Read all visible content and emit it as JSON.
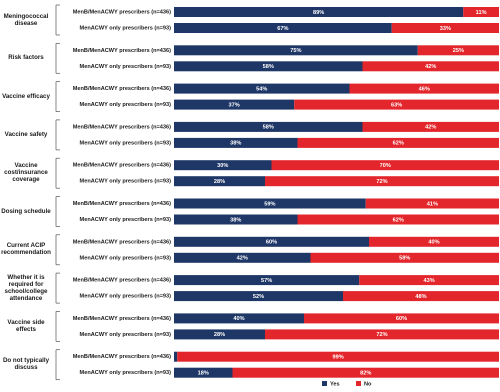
{
  "chart_data": {
    "type": "stacked-bar-horizontal",
    "groups": [
      "Meningococcal disease",
      "Risk factors",
      "Vaccine efficacy",
      "Vaccine safety",
      "Vaccine cost/insurance coverage",
      "Dosing schedule",
      "Current ACIP recommendation",
      "Whether it is required for school/college attendance",
      "Vaccine side effects",
      "Do not typically discuss"
    ],
    "categories": [
      "MenB/MenACWY prescribers (n=436)",
      "MenACWY only prescribers (n=93)",
      "MenB/MenACWY prescribers (n=436)",
      "MenACWY only prescribers (n=93)",
      "MenB/MenACWY prescribers (n=436)",
      "MenACWY only prescribers (n=93)",
      "MenB/MenACWY prescribers (n=436)",
      "MenACWY only prescribers (n=93)",
      "MenB/MenACWY prescribers (n=436)",
      "MenACWY only prescribers (n=93)",
      "MenB/MenACWY prescribers (n=436)",
      "MenACWY only prescribers (n=93)",
      "MenB/MenACWY prescribers (n=436)",
      "MenACWY only prescribers (n=93)",
      "MenB/MenACWY prescribers (n=436)",
      "MenACWY only prescribers (n=93)",
      "MenB/MenACWY prescribers (n=436)",
      "MenACWY only prescribers (n=93)",
      "MenB/MenACWY prescribers (n=436)",
      "MenACWY only prescribers (n=93)"
    ],
    "series": [
      {
        "name": "Yes",
        "color": "#1f3767",
        "values": [
          89,
          67,
          75,
          58,
          54,
          37,
          58,
          38,
          30,
          28,
          59,
          38,
          60,
          42,
          57,
          52,
          40,
          28,
          1,
          18
        ],
        "value_labels": [
          "89%",
          "67%",
          "75%",
          "58%",
          "54%",
          "37%",
          "58%",
          "38%",
          "30%",
          "28%",
          "59%",
          "38%",
          "60%",
          "42%",
          "57%",
          "52%",
          "40%",
          "28%",
          null,
          "18%"
        ]
      },
      {
        "name": "No",
        "color": "#e3262b",
        "values": [
          11,
          33,
          25,
          42,
          46,
          63,
          42,
          62,
          70,
          72,
          41,
          62,
          40,
          58,
          43,
          48,
          60,
          72,
          99,
          82
        ],
        "value_labels": [
          "11%",
          "33%",
          "25%",
          "42%",
          "46%",
          "63%",
          "42%",
          "62%",
          "70%",
          "72%",
          "41%",
          "62%",
          "40%",
          "58%",
          "43%",
          "48%",
          "60%",
          "72%",
          "99%",
          "82%"
        ]
      }
    ],
    "xlim": [
      0,
      100
    ],
    "legend": "bottom-right"
  }
}
